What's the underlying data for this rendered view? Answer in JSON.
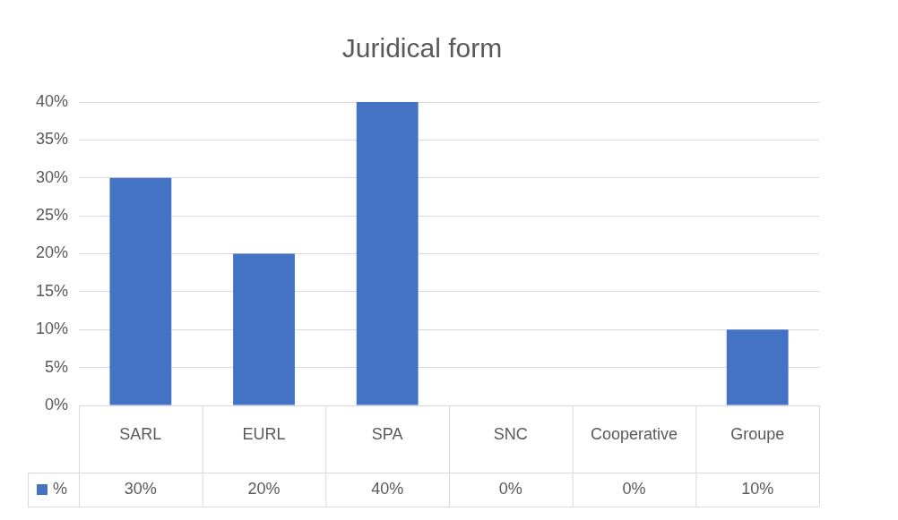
{
  "chart_data": {
    "type": "bar",
    "title": "Juridical form",
    "categories": [
      "SARL",
      "EURL",
      "SPA",
      "SNC",
      "Cooperative",
      "Groupe"
    ],
    "series": [
      {
        "name": "%",
        "color": "#4472c4",
        "values": [
          30,
          20,
          40,
          0,
          0,
          10
        ],
        "value_labels": [
          "30%",
          "20%",
          "40%",
          "0%",
          "0%",
          "10%"
        ]
      }
    ],
    "ylim": [
      0,
      40
    ],
    "yticks": [
      {
        "value": 0,
        "label": "0%"
      },
      {
        "value": 5,
        "label": "5%"
      },
      {
        "value": 10,
        "label": "10%"
      },
      {
        "value": 15,
        "label": "15%"
      },
      {
        "value": 20,
        "label": "20%"
      },
      {
        "value": 25,
        "label": "25%"
      },
      {
        "value": 30,
        "label": "30%"
      },
      {
        "value": 35,
        "label": "35%"
      },
      {
        "value": 40,
        "label": "40%"
      }
    ],
    "grid": "y"
  }
}
